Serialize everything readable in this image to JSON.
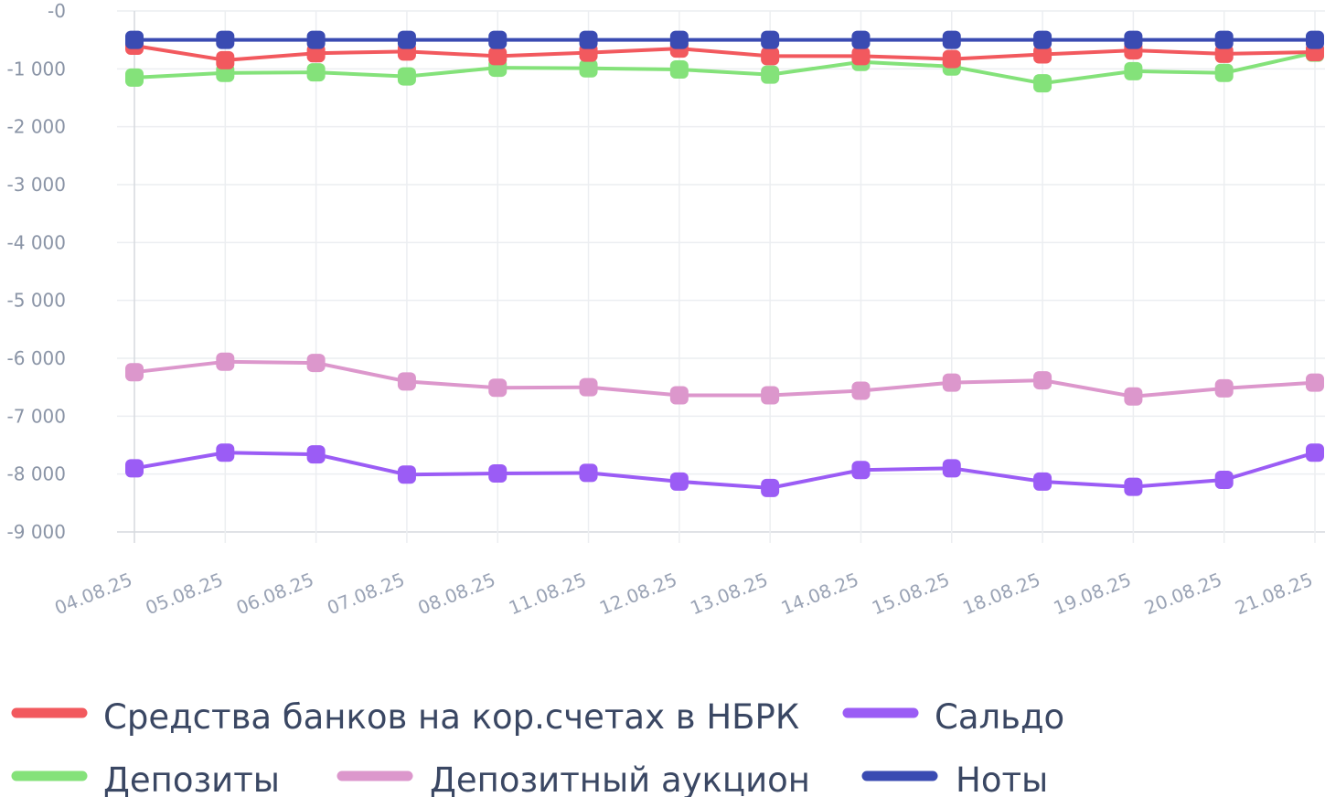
{
  "chart_data": {
    "type": "line",
    "title": "",
    "xlabel": "",
    "ylabel": "",
    "ylim": [
      -9000,
      0
    ],
    "yticks": [
      0,
      -1000,
      -2000,
      -3000,
      -4000,
      -5000,
      -6000,
      -7000,
      -8000,
      -9000
    ],
    "ytick_labels": [
      "-0",
      "-1 000",
      "-2 000",
      "-3 000",
      "-4 000",
      "-5 000",
      "-6 000",
      "-7 000",
      "-8 000",
      "-9 000"
    ],
    "grid": true,
    "legend_position": "bottom",
    "categories": [
      "04.08.25",
      "05.08.25",
      "06.08.25",
      "07.08.25",
      "08.08.25",
      "11.08.25",
      "12.08.25",
      "13.08.25",
      "14.08.25",
      "15.08.25",
      "18.08.25",
      "19.08.25",
      "20.08.25",
      "21.08.25"
    ],
    "series": [
      {
        "name": "Средства банков на кор.счетах в НБРК",
        "color": "#f2595e",
        "values": [
          -600,
          -850,
          -730,
          -700,
          -780,
          -720,
          -650,
          -780,
          -780,
          -830,
          -750,
          -680,
          -740,
          -710
        ]
      },
      {
        "name": "Сальдо",
        "color": "#9b5cf5",
        "values": [
          -7900,
          -7630,
          -7660,
          -8010,
          -7990,
          -7980,
          -8130,
          -8240,
          -7930,
          -7900,
          -8130,
          -8220,
          -8100,
          -7630
        ]
      },
      {
        "name": "Депозиты",
        "color": "#84e27a",
        "values": [
          -1150,
          -1070,
          -1060,
          -1130,
          -980,
          -990,
          -1010,
          -1100,
          -880,
          -960,
          -1250,
          -1040,
          -1070,
          -720
        ]
      },
      {
        "name": "Депозитный аукцион",
        "color": "#dc97cc",
        "values": [
          -6240,
          -6060,
          -6080,
          -6400,
          -6510,
          -6500,
          -6640,
          -6640,
          -6560,
          -6420,
          -6380,
          -6660,
          -6520,
          -6420
        ]
      },
      {
        "name": "Ноты",
        "color": "#3a4bb2",
        "values": [
          -500,
          -500,
          -500,
          -500,
          -500,
          -500,
          -500,
          -500,
          -500,
          -500,
          -500,
          -500,
          -500,
          -500
        ]
      }
    ]
  }
}
